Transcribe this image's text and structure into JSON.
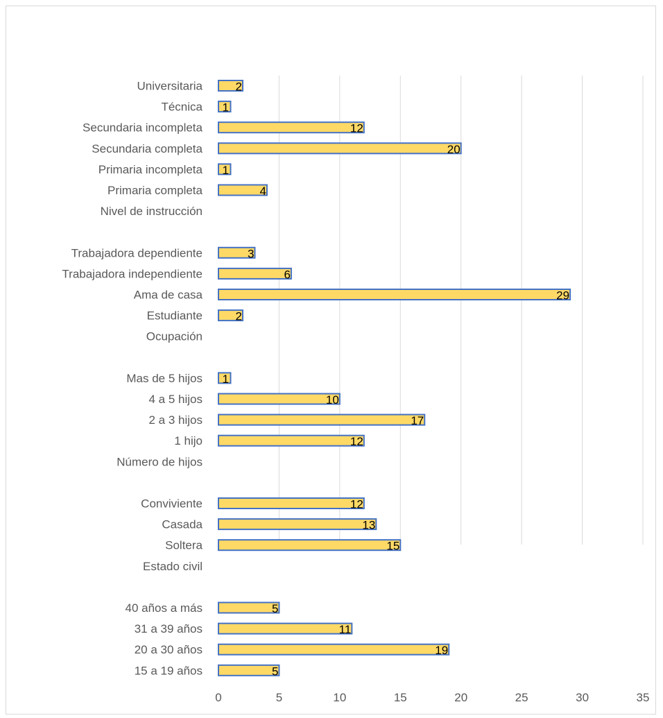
{
  "chart_data": {
    "type": "bar",
    "orientation": "horizontal",
    "categories": [
      "Universitaria",
      "Técnica",
      "Secundaria incompleta",
      "Secundaria completa",
      "Primaria incompleta",
      "Primaria completa",
      "Nivel de instrucción",
      "",
      "Trabajadora dependiente",
      "Trabajadora independiente",
      "Ama de casa",
      "Estudiante",
      "Ocupación",
      "",
      "Mas de 5 hijos",
      "4 a 5 hijos",
      "2 a 3 hijos",
      "1 hijo",
      "Número de hijos",
      "",
      "Conviviente",
      "Casada",
      "Soltera",
      "Estado civil",
      "",
      "40 años a más",
      "31 a 39 años",
      "20 a 30 años",
      "15 a 19 años"
    ],
    "values": [
      2,
      1,
      12,
      20,
      1,
      4,
      null,
      null,
      3,
      6,
      29,
      2,
      null,
      null,
      1,
      10,
      17,
      12,
      null,
      null,
      12,
      13,
      15,
      null,
      null,
      5,
      11,
      19,
      5
    ],
    "xlim": [
      0,
      35
    ],
    "xticks": [
      "0",
      "5",
      "10",
      "15",
      "20",
      "25",
      "30",
      "35"
    ],
    "grid": true,
    "bar_color": "#ffd966",
    "bar_edge_color": "#4472c4",
    "data_labels": true
  }
}
